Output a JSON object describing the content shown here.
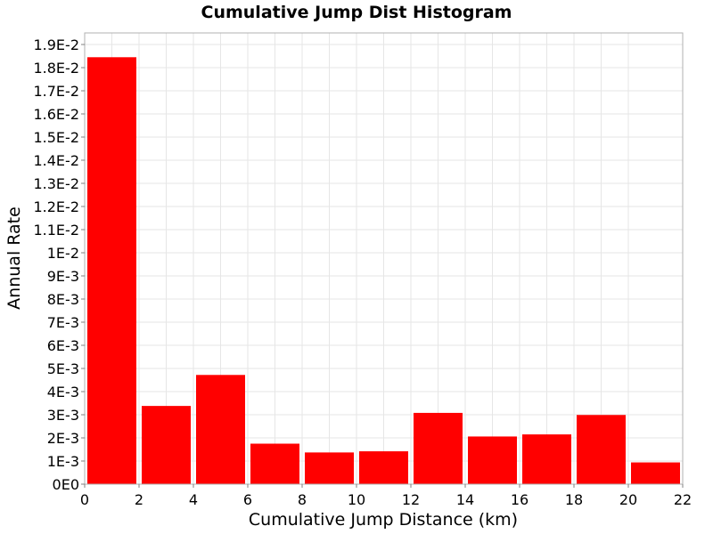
{
  "chart_data": {
    "type": "bar",
    "title": "Cumulative Jump Dist Histogram",
    "xlabel": "Cumulative Jump Distance (km)",
    "ylabel": "Annual Rate",
    "xlim": [
      0,
      22
    ],
    "ylim": [
      0,
      0.0195
    ],
    "bar_color": "#ff0000",
    "grid": true,
    "x_ticks": [
      0,
      2,
      4,
      6,
      8,
      10,
      12,
      14,
      16,
      18,
      20,
      22
    ],
    "x_tick_labels": [
      "0",
      "2",
      "4",
      "6",
      "8",
      "10",
      "12",
      "14",
      "16",
      "18",
      "20",
      "22"
    ],
    "y_ticks": [
      0,
      0.001,
      0.002,
      0.003,
      0.004,
      0.005,
      0.006,
      0.007,
      0.008,
      0.009,
      0.01,
      0.011,
      0.012,
      0.013,
      0.014,
      0.015,
      0.016,
      0.017,
      0.018,
      0.019
    ],
    "y_tick_labels": [
      "0E0",
      "1E-3",
      "2E-3",
      "3E-3",
      "4E-3",
      "5E-3",
      "6E-3",
      "7E-3",
      "8E-3",
      "9E-3",
      "1E-2",
      "1.1E-2",
      "1.2E-2",
      "1.3E-2",
      "1.4E-2",
      "1.5E-2",
      "1.6E-2",
      "1.7E-2",
      "1.8E-2",
      "1.9E-2"
    ],
    "bins": [
      {
        "x0": 0,
        "x1": 2,
        "value": 0.01845
      },
      {
        "x0": 2,
        "x1": 4,
        "value": 0.00338
      },
      {
        "x0": 4,
        "x1": 6,
        "value": 0.00472
      },
      {
        "x0": 6,
        "x1": 8,
        "value": 0.00175
      },
      {
        "x0": 8,
        "x1": 10,
        "value": 0.00137
      },
      {
        "x0": 10,
        "x1": 12,
        "value": 0.00142
      },
      {
        "x0": 12,
        "x1": 14,
        "value": 0.00308
      },
      {
        "x0": 14,
        "x1": 16,
        "value": 0.00206
      },
      {
        "x0": 16,
        "x1": 18,
        "value": 0.00215
      },
      {
        "x0": 18,
        "x1": 20,
        "value": 0.00299
      },
      {
        "x0": 20,
        "x1": 22,
        "value": 0.00094
      }
    ]
  }
}
